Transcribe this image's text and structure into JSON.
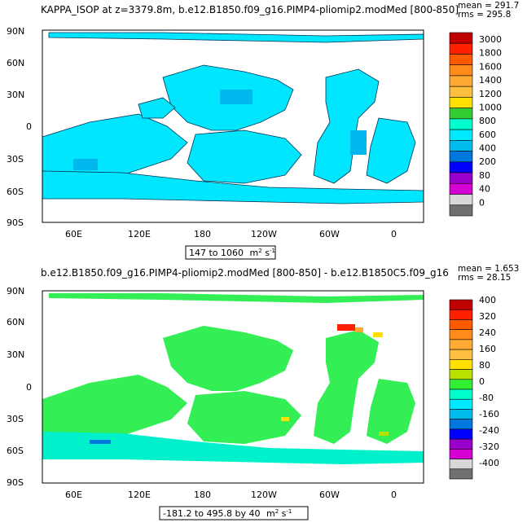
{
  "panels": [
    {
      "title": "KAPPA_ISOP at z=3379.8m, b.e12.B1850.f09_g16.PIMP4-pliomip2.modMed [800-850]",
      "mean_text": "mean = 291.7",
      "rms_text": "rms = 295.8",
      "range_text": "147 to 1060",
      "units_main": "m",
      "units_sup1": "2",
      "units_mid": " s",
      "units_sup2": "-1",
      "y_ticks": [
        "90N",
        "60N",
        "30N",
        "0",
        "30S",
        "60S",
        "90S"
      ],
      "x_ticks": [
        "60E",
        "120E",
        "180",
        "120W",
        "60W",
        "0"
      ],
      "colorbar_labels": [
        "3000",
        "1800",
        "1600",
        "1400",
        "1200",
        "1000",
        "800",
        "600",
        "400",
        "200",
        "80",
        "40",
        "0"
      ],
      "colorbar_colors": [
        "#c00000",
        "#ff2000",
        "#ff5a00",
        "#ff8c1a",
        "#ffaa33",
        "#ffc040",
        "#ffe000",
        "#33cc33",
        "#00ffcc",
        "#00eaff",
        "#00bbee",
        "#0077dd",
        "#0000ff",
        "#9a00cc",
        "#d400d4",
        "#d8d8d8",
        "#707070"
      ]
    },
    {
      "title": "b.e12.B1850.f09_g16.PIMP4-pliomip2.modMed [800-850] - b.e12.B1850C5.f09_g16",
      "mean_text": "mean = 1.653",
      "rms_text": "rms = 28.15",
      "range_text": "-181.2 to 495.8 by 40",
      "units_main": "m",
      "units_sup1": "2",
      "units_mid": " s",
      "units_sup2": "-1",
      "y_ticks": [
        "90N",
        "60N",
        "30N",
        "0",
        "30S",
        "60S",
        "90S"
      ],
      "x_ticks": [
        "60E",
        "120E",
        "180",
        "120W",
        "60W",
        "0"
      ],
      "colorbar_labels": [
        "400",
        "320",
        "240",
        "160",
        "80",
        "0",
        "-80",
        "-160",
        "-240",
        "-320",
        "-400"
      ],
      "colorbar_colors": [
        "#c00000",
        "#ff2000",
        "#ff5a00",
        "#ff8c1a",
        "#ffaa33",
        "#ffc040",
        "#ffe000",
        "#b8e000",
        "#33ee33",
        "#00ffcc",
        "#00eaff",
        "#00bbee",
        "#0077dd",
        "#0000ff",
        "#9a00cc",
        "#d400d4",
        "#d8d8d8",
        "#707070"
      ]
    }
  ],
  "colors": {
    "ocean_top": "#00e6ff",
    "ocean_top_dark": "#00b8ee",
    "ocean_bottom": "#33ee55",
    "ocean_bottom_cyan": "#00f0cc",
    "land": "#ffffff",
    "frame": "#000000"
  }
}
